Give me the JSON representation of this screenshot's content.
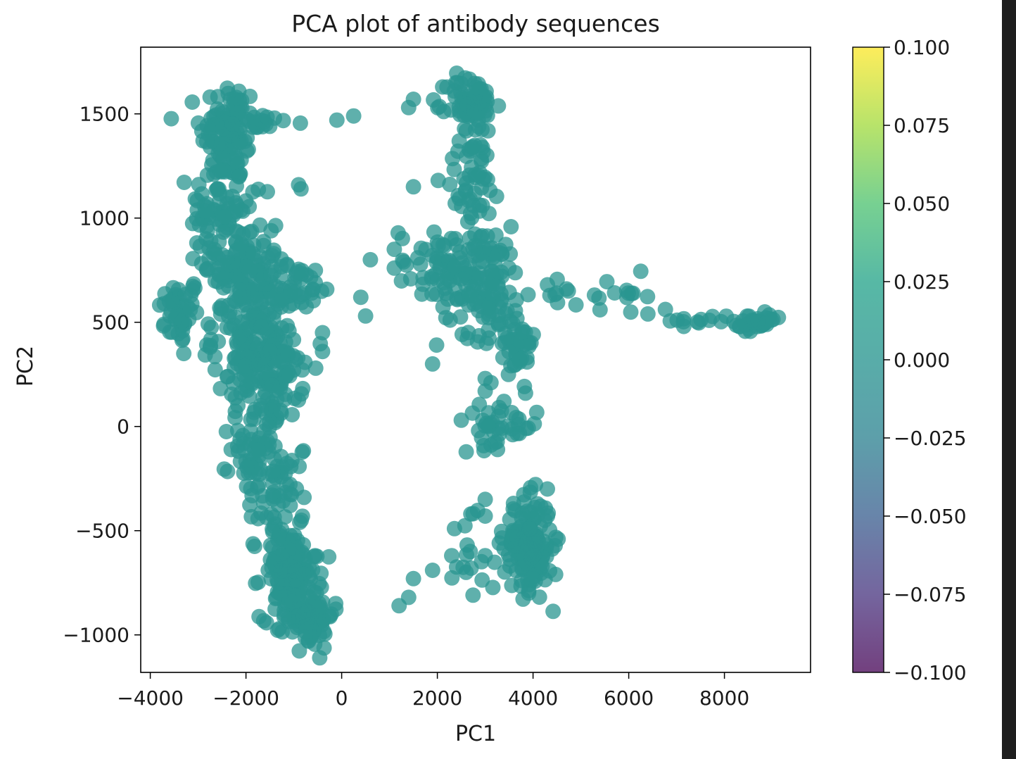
{
  "chart_data": {
    "type": "scatter",
    "title": "PCA plot of antibody sequences",
    "xlabel": "PC1",
    "ylabel": "PC2",
    "xlim": [
      -4200,
      9800
    ],
    "ylim": [
      -1180,
      1820
    ],
    "xticks": [
      -4000,
      -2000,
      0,
      2000,
      4000,
      6000,
      8000
    ],
    "xtick_labels": [
      "−4000",
      "−2000",
      "0",
      "2000",
      "4000",
      "6000",
      "8000"
    ],
    "yticks": [
      -1000,
      -500,
      0,
      500,
      1000,
      1500
    ],
    "ytick_labels": [
      "−1000",
      "−500",
      "0",
      "500",
      "1000",
      "1500"
    ],
    "marker_color": "#2a9690",
    "marker_alpha": 0.75,
    "grid": false,
    "colorbar": {
      "colormap": "viridis",
      "range": [
        -0.1,
        0.1
      ],
      "tick_values": [
        0.1,
        0.075,
        0.05,
        0.025,
        0.0,
        -0.025,
        -0.05,
        -0.075,
        -0.1
      ],
      "tick_labels": [
        "0.100",
        "0.075",
        "0.050",
        "0.025",
        "0.000",
        "−0.025",
        "−0.050",
        "−0.075",
        "−0.100"
      ]
    },
    "clusters": [
      {
        "cx": -3400,
        "cy": 550,
        "sx": 220,
        "sy": 80,
        "n": 45
      },
      {
        "cx": -2350,
        "cy": 1420,
        "sx": 300,
        "sy": 120,
        "n": 110
      },
      {
        "cx": -2600,
        "cy": 1050,
        "sx": 280,
        "sy": 120,
        "n": 60
      },
      {
        "cx": -2100,
        "cy": 800,
        "sx": 400,
        "sy": 140,
        "n": 110
      },
      {
        "cx": -1800,
        "cy": 450,
        "sx": 450,
        "sy": 150,
        "n": 160
      },
      {
        "cx": -1500,
        "cy": 250,
        "sx": 350,
        "sy": 110,
        "n": 90
      },
      {
        "cx": -1700,
        "cy": -100,
        "sx": 300,
        "sy": 120,
        "n": 70
      },
      {
        "cx": -1400,
        "cy": -350,
        "sx": 250,
        "sy": 100,
        "n": 40
      },
      {
        "cx": -1100,
        "cy": -700,
        "sx": 300,
        "sy": 110,
        "n": 140
      },
      {
        "cx": -700,
        "cy": -900,
        "sx": 260,
        "sy": 80,
        "n": 90
      },
      {
        "cx": -900,
        "cy": 680,
        "sx": 450,
        "sy": 50,
        "n": 30
      },
      {
        "cx": -1750,
        "cy": 1460,
        "sx": 400,
        "sy": 20,
        "n": 18
      },
      {
        "cx": 2700,
        "cy": 1550,
        "sx": 250,
        "sy": 70,
        "n": 70
      },
      {
        "cx": 2750,
        "cy": 1200,
        "sx": 300,
        "sy": 110,
        "n": 50
      },
      {
        "cx": 2900,
        "cy": 700,
        "sx": 450,
        "sy": 130,
        "n": 130
      },
      {
        "cx": 2000,
        "cy": 800,
        "sx": 400,
        "sy": 80,
        "n": 40
      },
      {
        "cx": 3700,
        "cy": 400,
        "sx": 180,
        "sy": 90,
        "n": 45
      },
      {
        "cx": 3300,
        "cy": 0,
        "sx": 400,
        "sy": 50,
        "n": 40
      },
      {
        "cx": 3900,
        "cy": -570,
        "sx": 250,
        "sy": 110,
        "n": 170
      },
      {
        "cx": 2800,
        "cy": -550,
        "sx": 250,
        "sy": 120,
        "n": 15
      },
      {
        "cx": 7500,
        "cy": 520,
        "sx": 500,
        "sy": 30,
        "n": 16
      },
      {
        "cx": 8700,
        "cy": 490,
        "sx": 250,
        "sy": 25,
        "n": 30
      },
      {
        "cx": 5800,
        "cy": 620,
        "sx": 300,
        "sy": 50,
        "n": 12
      },
      {
        "cx": 4600,
        "cy": 650,
        "sx": 200,
        "sy": 40,
        "n": 8
      }
    ],
    "points": [
      [
        250,
        1490
      ],
      [
        -100,
        1470
      ],
      [
        1100,
        850
      ],
      [
        1100,
        760
      ],
      [
        600,
        800
      ],
      [
        400,
        620
      ],
      [
        500,
        530
      ],
      [
        -400,
        450
      ],
      [
        -400,
        360
      ],
      [
        1400,
        1530
      ],
      [
        1500,
        1570
      ],
      [
        1500,
        1150
      ],
      [
        -900,
        1160
      ],
      [
        -850,
        1140
      ],
      [
        1900,
        300
      ],
      [
        1200,
        -860
      ],
      [
        1400,
        -820
      ],
      [
        1500,
        -730
      ],
      [
        1900,
        -690
      ],
      [
        2300,
        -620
      ],
      [
        2600,
        -700
      ],
      [
        3000,
        -620
      ],
      [
        2700,
        -420
      ],
      [
        3000,
        -350
      ],
      [
        3000,
        -430
      ],
      [
        2500,
        30
      ],
      [
        3000,
        170
      ],
      [
        3000,
        230
      ],
      [
        4300,
        -300
      ],
      [
        4700,
        660
      ],
      [
        5400,
        560
      ],
      [
        6400,
        540
      ],
      [
        7150,
        480
      ],
      [
        -3300,
        350
      ],
      [
        -3600,
        600
      ]
    ]
  }
}
